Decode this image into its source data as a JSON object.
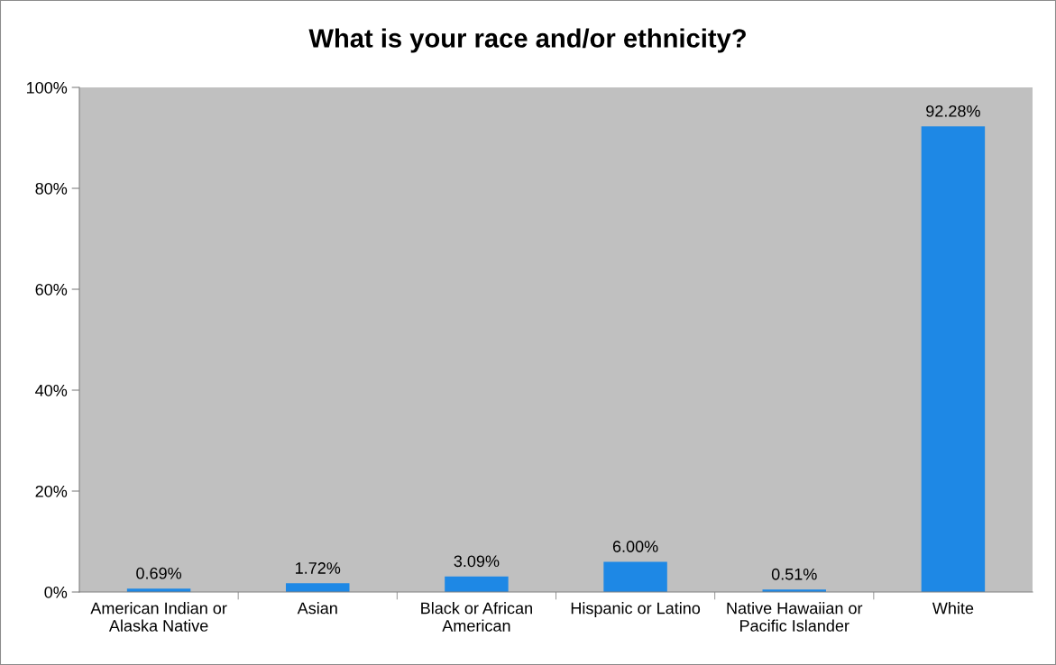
{
  "chart_data": {
    "type": "bar",
    "title": "What is your race and/or ethnicity?",
    "categories": [
      "American Indian or\nAlaska Native",
      "Asian",
      "Black or African\nAmerican",
      "Hispanic or Latino",
      "Native Hawaiian or\nPacific Islander",
      "White"
    ],
    "values": [
      0.69,
      1.72,
      3.09,
      6.0,
      0.51,
      92.28
    ],
    "value_labels": [
      "0.69%",
      "1.72%",
      "3.09%",
      "6.00%",
      "0.51%",
      "92.28%"
    ],
    "color": "#1e88e5",
    "ylim": [
      0,
      100
    ],
    "yticks": [
      {
        "value": 0,
        "label": "0%"
      },
      {
        "value": 20,
        "label": "20%"
      },
      {
        "value": 40,
        "label": "40%"
      },
      {
        "value": 60,
        "label": "60%"
      },
      {
        "value": 80,
        "label": "80%"
      },
      {
        "value": 100,
        "label": "100%"
      }
    ],
    "grid": false,
    "legend": false
  }
}
